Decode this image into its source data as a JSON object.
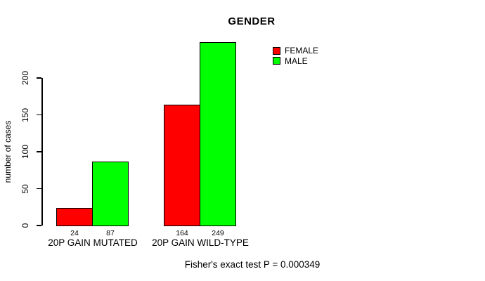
{
  "title": "GENDER",
  "caption": "Fisher's exact test P = 0.000349",
  "y_axis": {
    "label": "number of cases",
    "ticks": [
      0,
      50,
      100,
      150,
      200
    ]
  },
  "legend": {
    "entries": [
      {
        "label": "FEMALE",
        "color": "#FF0000"
      },
      {
        "label": "MALE",
        "color": "#00FF00"
      }
    ]
  },
  "chart_data": {
    "type": "bar",
    "title": "GENDER",
    "categories": [
      "20P GAIN MUTATED",
      "20P GAIN WILD-TYPE"
    ],
    "series": [
      {
        "name": "FEMALE",
        "color": "#FF0000",
        "values": [
          24,
          164
        ]
      },
      {
        "name": "MALE",
        "color": "#00FF00",
        "values": [
          87,
          249
        ]
      }
    ],
    "bar_value_labels": [
      [
        24,
        87
      ],
      [
        164,
        249
      ]
    ],
    "xlabel": "",
    "ylabel": "number of cases",
    "ylim": [
      0,
      250
    ],
    "yticks": [
      0,
      50,
      100,
      150,
      200
    ],
    "grid": false,
    "legend_position": "top-right",
    "annotation": "Fisher's exact test P = 0.000349"
  }
}
